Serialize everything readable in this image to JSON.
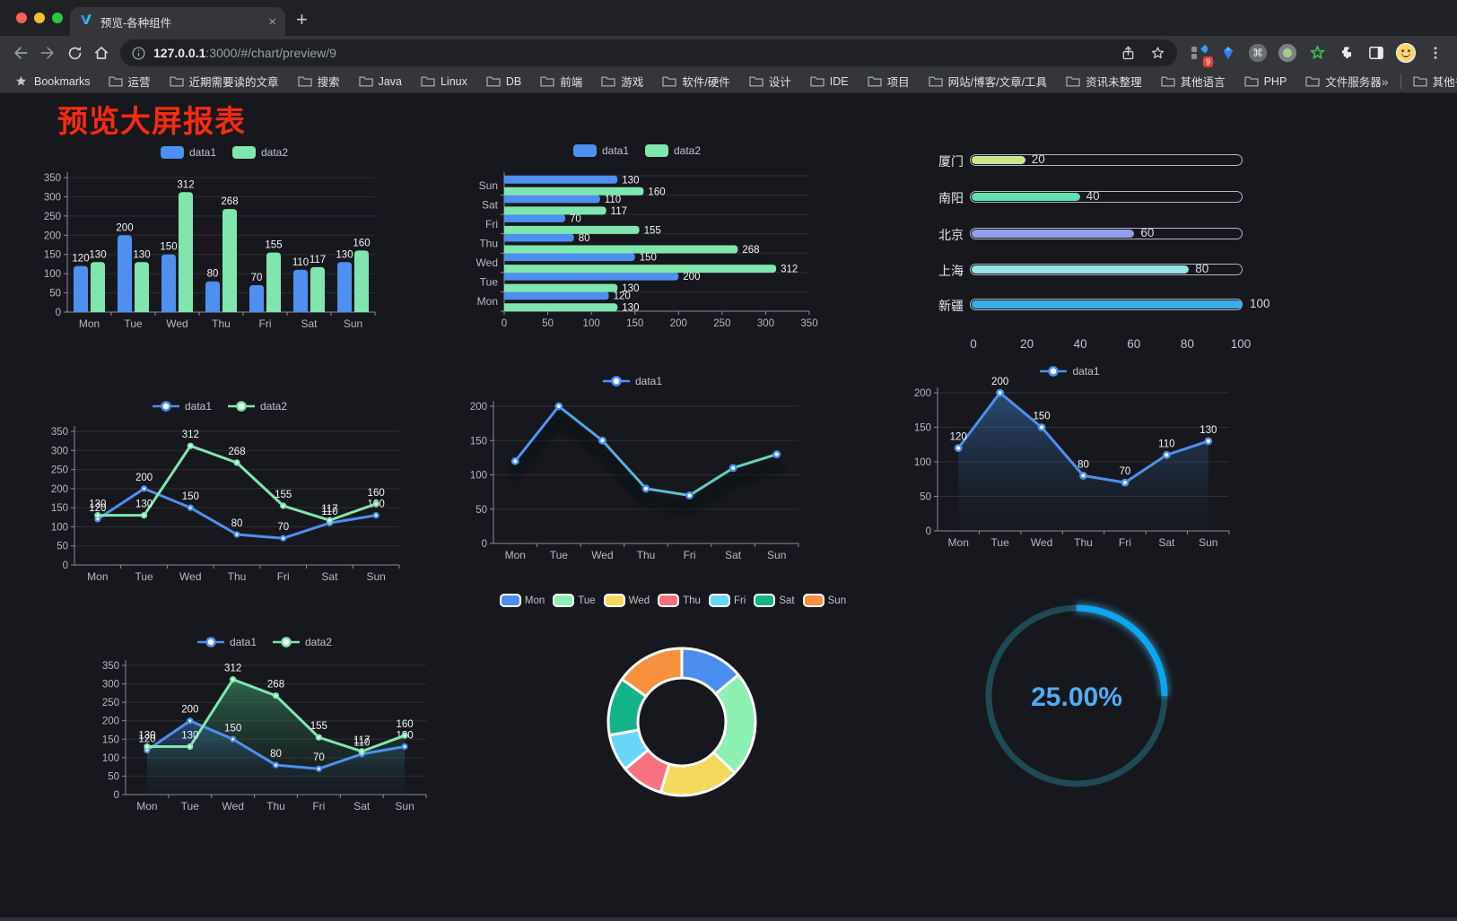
{
  "browser": {
    "traffic_lights": [
      "#ff5f57",
      "#febc2e",
      "#2ac840"
    ],
    "tab": {
      "title": "预览-各种组件",
      "close_glyph": "×"
    },
    "new_tab_glyph": "+",
    "url": {
      "host": "127.0.0.1",
      "rest": ":3000/#/chart/preview/9"
    },
    "extensions_badge": "9",
    "bookmarks": {
      "root_label": "Bookmarks",
      "items": [
        "运营",
        "近期需要读的文章",
        "搜索",
        "Java",
        "Linux",
        "DB",
        "前端",
        "游戏",
        "软件/硬件",
        "设计",
        "IDE",
        "项目",
        "网站/博客/文章/工具",
        "资讯未整理",
        "其他语言",
        "PHP",
        "文件服务器"
      ],
      "overflow_glyph": "»",
      "other_label": "其他书签"
    }
  },
  "page": {
    "title": "预览大屏报表"
  },
  "theme": {
    "bg": "#17181d",
    "axis": "#8b8d99",
    "tick_label": "#b7b8c4",
    "grid": "#2e2f38",
    "value_label": "#f4f5f8",
    "blue": "#4d90ef",
    "green": "#7fe7ad"
  },
  "chart_data": [
    {
      "id": "grouped-bar",
      "type": "bar",
      "categories": [
        "Mon",
        "Tue",
        "Wed",
        "Thu",
        "Fri",
        "Sat",
        "Sun"
      ],
      "series": [
        {
          "name": "data1",
          "color": "#4d90ef",
          "values": [
            120,
            200,
            150,
            80,
            70,
            110,
            130
          ]
        },
        {
          "name": "data2",
          "color": "#7fe7ad",
          "values": [
            130,
            130,
            312,
            268,
            155,
            117,
            160
          ]
        }
      ],
      "ylim": [
        0,
        350
      ],
      "ystep": 50,
      "legend_position": "top",
      "grid": true
    },
    {
      "id": "grouped-horizontal-bar",
      "type": "bar",
      "orientation": "horizontal",
      "category_axis": "y (Mon at bottom, Sun at top)",
      "categories": [
        "Mon",
        "Tue",
        "Wed",
        "Thu",
        "Fri",
        "Sat",
        "Sun"
      ],
      "series": [
        {
          "name": "data1",
          "color": "#4d90ef",
          "values": [
            120,
            200,
            150,
            80,
            70,
            110,
            130
          ]
        },
        {
          "name": "data2",
          "color": "#7fe7ad",
          "values": [
            130,
            130,
            312,
            268,
            155,
            117,
            160
          ]
        }
      ],
      "xlim": [
        0,
        350
      ],
      "xstep": 50,
      "legend_position": "top",
      "grid": true
    },
    {
      "id": "city-progress-bars",
      "type": "bar",
      "orientation": "horizontal",
      "style": "capsule-progress",
      "categories": [
        "厦门",
        "南阳",
        "北京",
        "上海",
        "新疆"
      ],
      "values": [
        20,
        40,
        60,
        80,
        100
      ],
      "colors": [
        "#c9e692",
        "#5fe0ae",
        "#959ee8",
        "#93e6e3",
        "#38aee4"
      ],
      "xlim": [
        0,
        100
      ],
      "xticks": [
        0,
        20,
        40,
        60,
        80,
        100
      ]
    },
    {
      "id": "line-two-series",
      "type": "line",
      "categories": [
        "Mon",
        "Tue",
        "Wed",
        "Thu",
        "Fri",
        "Sat",
        "Sun"
      ],
      "series": [
        {
          "name": "data1",
          "color": "#4d90ef",
          "values": [
            120,
            200,
            150,
            80,
            70,
            110,
            130
          ]
        },
        {
          "name": "data2",
          "color": "#7fe7ad",
          "values": [
            130,
            130,
            312,
            268,
            155,
            117,
            160
          ]
        }
      ],
      "ylim": [
        0,
        350
      ],
      "ystep": 50,
      "point_labels": true,
      "legend_position": "top"
    },
    {
      "id": "line-gradient",
      "type": "line",
      "categories": [
        "Mon",
        "Tue",
        "Wed",
        "Thu",
        "Fri",
        "Sat",
        "Sun"
      ],
      "series": [
        {
          "name": "data1",
          "color_gradient": [
            "#4992ff",
            "#66dfb0"
          ],
          "values": [
            120,
            200,
            150,
            80,
            70,
            110,
            130
          ]
        }
      ],
      "ylim": [
        0,
        200
      ],
      "ystep": 50,
      "point_labels": false,
      "shadow": true,
      "legend_position": "top"
    },
    {
      "id": "area-single",
      "type": "area",
      "categories": [
        "Mon",
        "Tue",
        "Wed",
        "Thu",
        "Fri",
        "Sat",
        "Sun"
      ],
      "series": [
        {
          "name": "data1",
          "color": "#4d90ef",
          "area": [
            "rgba(64,128,210,0.50)",
            "rgba(30,50,80,0.04)"
          ],
          "values": [
            120,
            200,
            150,
            80,
            70,
            110,
            130
          ]
        }
      ],
      "ylim": [
        0,
        200
      ],
      "ystep": 50,
      "point_labels": true,
      "legend_position": "top"
    },
    {
      "id": "area-two-series",
      "type": "area",
      "categories": [
        "Mon",
        "Tue",
        "Wed",
        "Thu",
        "Fri",
        "Sat",
        "Sun"
      ],
      "series": [
        {
          "name": "data1",
          "color": "#4d90ef",
          "area": [
            "rgba(64,128,210,0.45)",
            "rgba(30,50,80,0.03)"
          ],
          "values": [
            120,
            200,
            150,
            80,
            70,
            110,
            130
          ]
        },
        {
          "name": "data2",
          "color": "#7fe7ad",
          "area": [
            "rgba(70,180,130,0.50)",
            "rgba(25,60,45,0.04)"
          ],
          "values": [
            130,
            130,
            312,
            268,
            155,
            117,
            160
          ]
        }
      ],
      "ylim": [
        0,
        350
      ],
      "ystep": 50,
      "point_labels": true,
      "legend_position": "top"
    },
    {
      "id": "donut",
      "type": "pie",
      "inner_radius_ratio": 0.6,
      "categories": [
        "Mon",
        "Tue",
        "Wed",
        "Thu",
        "Fri",
        "Sat",
        "Sun"
      ],
      "values": [
        120,
        200,
        150,
        80,
        70,
        110,
        130
      ],
      "colors": [
        "#4c8df0",
        "#8cf0b2",
        "#f5d95c",
        "#f9707f",
        "#67d6f7",
        "#12b386",
        "#f7913f"
      ],
      "legend_position": "top"
    },
    {
      "id": "gauge",
      "type": "gauge",
      "value": 25,
      "max": 100,
      "display": "25.00%",
      "color": "#0ba7f3",
      "track_color": "#1d4a55",
      "text_color": "#4fadf5"
    }
  ]
}
